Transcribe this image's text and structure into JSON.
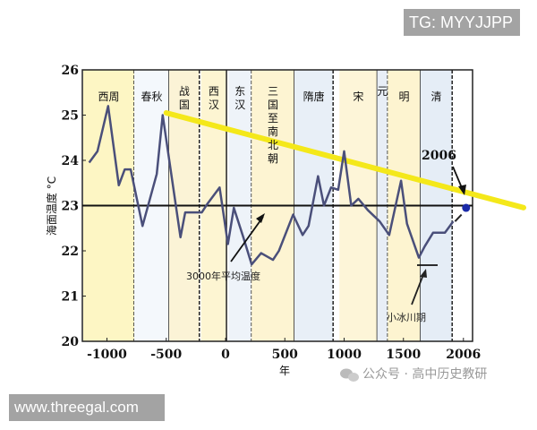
{
  "watermarks": {
    "top_right": "TG: MYYJJPP",
    "bottom_left": "www.threegal.com",
    "wechat": "公众号 · 高中历史教研"
  },
  "chart_data": {
    "type": "line",
    "title": "",
    "xlabel": "年",
    "ylabel": "海面温度 °C",
    "xlim": [
      -1200,
      2080
    ],
    "ylim": [
      20,
      26
    ],
    "x_ticks": [
      "-1000",
      "-500",
      "0",
      "500",
      "1000",
      "1500",
      "2006"
    ],
    "y_ticks": [
      "20",
      "21",
      "22",
      "23",
      "24",
      "25",
      "26"
    ],
    "grid": false,
    "reference_line": {
      "label": "3000年平均温度",
      "value": 23.0
    },
    "trend_line": {
      "color": "#f4e81a",
      "from": {
        "x": -500,
        "y": 25.05
      },
      "to": {
        "x": 2080,
        "y": 23.35
      }
    },
    "annotations": [
      {
        "text": "3000年平均温度",
        "x": 250,
        "y": 21.5
      },
      {
        "text": "小冰川期",
        "x": 1650,
        "y": 20.5
      },
      {
        "text": "2006",
        "x": 1930,
        "y": 24.0
      }
    ],
    "highlight_point": {
      "x": 2006,
      "y": 22.95,
      "color": "#1a2aa8"
    },
    "eras": [
      {
        "name": "西周",
        "from": -1200,
        "to": -770,
        "color": "#fdf6c4"
      },
      {
        "name": "春秋",
        "from": -770,
        "to": -476,
        "color": "#f4f8fc"
      },
      {
        "name": "战国",
        "from": -476,
        "to": -221,
        "color": "#fbf3d6"
      },
      {
        "name": "西汉",
        "from": -206,
        "to": 8,
        "color": "#fdf5d2"
      },
      {
        "name": "东汉",
        "from": 25,
        "to": 220,
        "color": "#eef3f9"
      },
      {
        "name": "三国至南北朝",
        "from": 220,
        "to": 581,
        "color": "#fdf4d2"
      },
      {
        "name": "隋唐",
        "from": 581,
        "to": 907,
        "color": "#e8eff7"
      },
      {
        "name": "宋",
        "from": 960,
        "to": 1279,
        "color": "#fdf5d8"
      },
      {
        "name": "元",
        "from": 1279,
        "to": 1368,
        "color": "#e8eef6"
      },
      {
        "name": "明",
        "from": 1368,
        "to": 1644,
        "color": "#fdf4d0"
      },
      {
        "name": "清",
        "from": 1644,
        "to": 1911,
        "color": "#e5edf6"
      }
    ],
    "series": [
      {
        "name": "海面温度",
        "color": "#4a4f7a",
        "points": [
          [
            -1150,
            23.95
          ],
          [
            -1080,
            24.2
          ],
          [
            -990,
            25.2
          ],
          [
            -900,
            23.45
          ],
          [
            -850,
            23.8
          ],
          [
            -800,
            23.8
          ],
          [
            -700,
            22.55
          ],
          [
            -580,
            23.7
          ],
          [
            -530,
            25.0
          ],
          [
            -430,
            23.2
          ],
          [
            -380,
            22.3
          ],
          [
            -340,
            22.85
          ],
          [
            -200,
            22.85
          ],
          [
            -150,
            23.05
          ],
          [
            -50,
            23.4
          ],
          [
            20,
            22.15
          ],
          [
            70,
            22.95
          ],
          [
            150,
            22.3
          ],
          [
            220,
            21.7
          ],
          [
            300,
            21.95
          ],
          [
            400,
            21.8
          ],
          [
            450,
            22.0
          ],
          [
            570,
            22.8
          ],
          [
            650,
            22.35
          ],
          [
            700,
            22.55
          ],
          [
            780,
            23.65
          ],
          [
            830,
            23.0
          ],
          [
            890,
            23.4
          ],
          [
            950,
            23.35
          ],
          [
            1000,
            24.2
          ],
          [
            1060,
            23.0
          ],
          [
            1120,
            23.15
          ],
          [
            1200,
            22.9
          ],
          [
            1300,
            22.65
          ],
          [
            1380,
            22.35
          ],
          [
            1480,
            23.55
          ],
          [
            1530,
            22.6
          ],
          [
            1630,
            21.85
          ],
          [
            1680,
            22.1
          ],
          [
            1750,
            22.4
          ],
          [
            1850,
            22.4
          ],
          [
            1920,
            22.65
          ]
        ]
      }
    ]
  }
}
